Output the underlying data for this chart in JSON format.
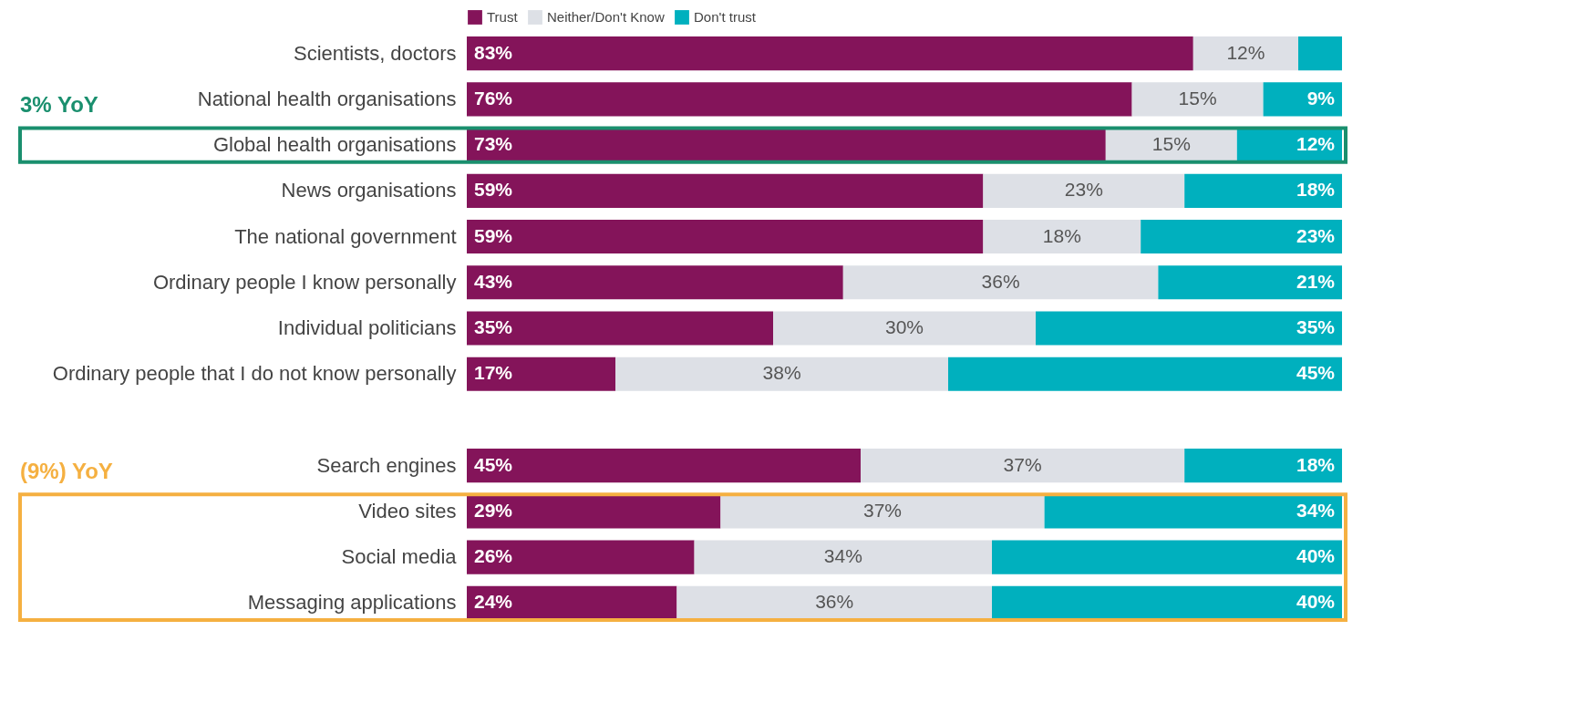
{
  "chart_data": {
    "type": "bar",
    "orientation": "horizontal",
    "stacked": true,
    "legend": "top",
    "tick_labels": "y",
    "categories": [
      "Scientists, doctors",
      "National health organisations",
      "Global health organisations",
      "News organisations",
      "The national government",
      "Ordinary people I know personally",
      "Individual politicians",
      "Ordinary people that I do not know personally",
      null,
      "Search engines",
      "Video sites",
      "Social media",
      "Messaging applications"
    ],
    "series": [
      {
        "name": "Trust",
        "color": "#84145a",
        "values": [
          83,
          76,
          73,
          59,
          59,
          43,
          35,
          17,
          null,
          45,
          29,
          26,
          24
        ],
        "value_labels": [
          "83%",
          "76%",
          "73%",
          "59%",
          "59%",
          "43%",
          "35%",
          "17%",
          null,
          "45%",
          "29%",
          "26%",
          "24%"
        ]
      },
      {
        "name": "Neither/Don't Know",
        "color": "#dde0e6",
        "values": [
          12,
          15,
          15,
          23,
          18,
          36,
          30,
          38,
          null,
          37,
          37,
          34,
          36
        ],
        "value_labels": [
          "12%",
          "15%",
          "15%",
          "23%",
          "18%",
          "36%",
          "30%",
          "38%",
          null,
          "37%",
          "37%",
          "34%",
          "36%"
        ]
      },
      {
        "name": "Don't trust",
        "color": "#00b0be",
        "values": [
          5,
          9,
          12,
          18,
          23,
          21,
          35,
          45,
          null,
          18,
          34,
          40,
          40
        ],
        "value_labels": [
          null,
          "9%",
          "12%",
          "18%",
          "23%",
          "21%",
          "35%",
          "45%",
          null,
          "18%",
          "34%",
          "40%",
          "40%"
        ]
      }
    ],
    "annotations": [
      "3% YoY",
      "(9%) YoY"
    ]
  }
}
